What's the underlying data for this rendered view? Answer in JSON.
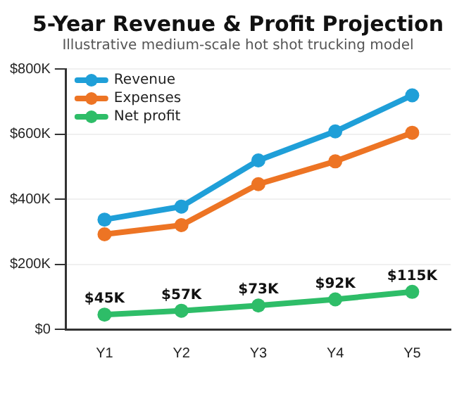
{
  "chart_data": {
    "type": "line",
    "title": "5-Year Revenue & Profit Projection",
    "subtitle": "Illustrative medium-scale hot shot trucking model",
    "categories": [
      "Y1",
      "Y2",
      "Y3",
      "Y4",
      "Y5"
    ],
    "series": [
      {
        "name": "Revenue",
        "color": "#1f9fd8",
        "values": [
          337,
          377,
          519,
          608,
          719
        ]
      },
      {
        "name": "Expenses",
        "color": "#ed7424",
        "values": [
          292,
          320,
          446,
          516,
          604
        ]
      },
      {
        "name": "Net profit",
        "color": "#2ebd68",
        "values": [
          45,
          57,
          73,
          92,
          115
        ],
        "value_labels": [
          "$45K",
          "$57K",
          "$73K",
          "$92K",
          "$115K"
        ]
      }
    ],
    "ylim": [
      0,
      800
    ],
    "yticks": [
      {
        "value": 0,
        "label": "$0"
      },
      {
        "value": 200,
        "label": "$200K"
      },
      {
        "value": 400,
        "label": "$400K"
      },
      {
        "value": 600,
        "label": "$600K"
      },
      {
        "value": 800,
        "label": "$800K"
      }
    ],
    "grid": "y",
    "legend": "top left",
    "marker": "circle",
    "line_style": "solid"
  }
}
